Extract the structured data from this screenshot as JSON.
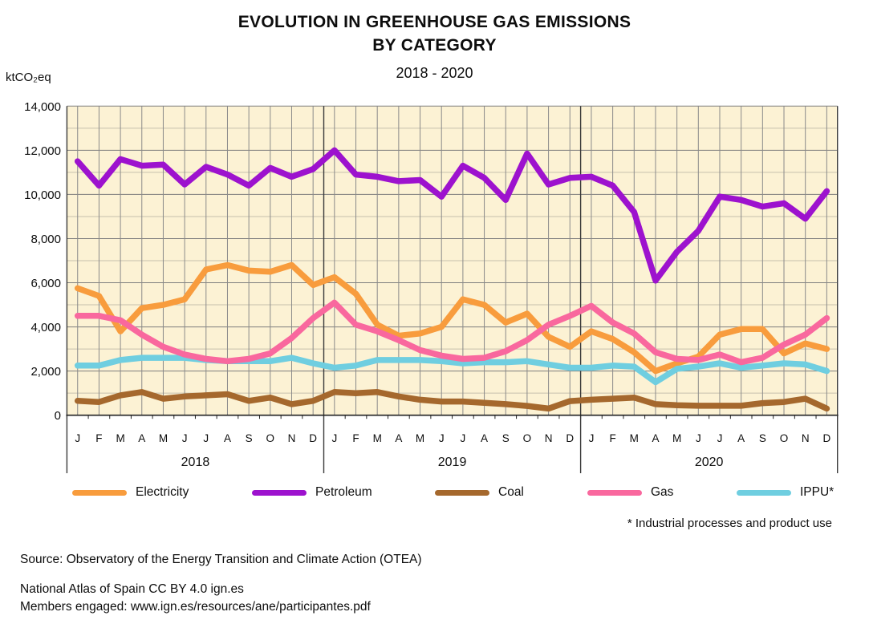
{
  "header": {
    "title_line1": "EVOLUTION IN GREENHOUSE GAS EMISSIONS",
    "title_line2": "BY CATEGORY",
    "subtitle": "2018 - 2020",
    "unit_label": "ktCO₂eq"
  },
  "chart_data": {
    "type": "line",
    "title": "EVOLUTION IN GREENHOUSE GAS EMISSIONS BY CATEGORY",
    "subtitle": "2018 - 2020",
    "xlabel": "",
    "ylabel": "ktCO₂eq",
    "ylim": [
      0,
      14000
    ],
    "ytick_labeled_interval": 2000,
    "ytick_minor_interval": 1000,
    "ytick_labels": [
      "0",
      "2,000",
      "4,000",
      "6,000",
      "8,000",
      "10,000",
      "12,000",
      "14,000"
    ],
    "grid": true,
    "legend_position": "bottom",
    "years": [
      "2018",
      "2019",
      "2020"
    ],
    "month_letters": [
      "J",
      "F",
      "M",
      "A",
      "M",
      "J",
      "J",
      "A",
      "S",
      "O",
      "N",
      "D"
    ],
    "series": [
      {
        "name": "Electricity",
        "color": "#F89C3D",
        "values": [
          5750,
          5400,
          3800,
          4850,
          5000,
          5250,
          6600,
          6800,
          6550,
          6500,
          6800,
          5900,
          6250,
          5500,
          4100,
          3600,
          3700,
          4000,
          5250,
          5000,
          4200,
          4600,
          3550,
          3100,
          3800,
          3450,
          2850,
          2000,
          2350,
          2650,
          3650,
          3900,
          3900,
          2800,
          3250,
          3000
        ]
      },
      {
        "name": "Petroleum",
        "color": "#9D12CE",
        "values": [
          11500,
          10400,
          11600,
          11300,
          11350,
          10450,
          11250,
          10900,
          10400,
          11200,
          10800,
          11150,
          12000,
          10900,
          10800,
          10600,
          10650,
          9900,
          11300,
          10750,
          9750,
          11850,
          10450,
          10750,
          10800,
          10400,
          9200,
          6100,
          7400,
          8350,
          9900,
          9750,
          9450,
          9600,
          8900,
          10150
        ]
      },
      {
        "name": "Coal",
        "color": "#A5682D",
        "values": [
          650,
          600,
          900,
          1050,
          750,
          850,
          900,
          950,
          650,
          800,
          500,
          650,
          1050,
          1000,
          1050,
          850,
          700,
          620,
          620,
          560,
          500,
          420,
          300,
          640,
          700,
          750,
          800,
          500,
          450,
          430,
          430,
          430,
          550,
          600,
          750,
          300
        ]
      },
      {
        "name": "Gas",
        "color": "#F9689E",
        "values": [
          4500,
          4500,
          4300,
          3650,
          3100,
          2750,
          2550,
          2450,
          2550,
          2800,
          3500,
          4400,
          5100,
          4100,
          3800,
          3400,
          2950,
          2700,
          2550,
          2600,
          2900,
          3400,
          4100,
          4500,
          4950,
          4200,
          3700,
          2850,
          2550,
          2500,
          2750,
          2400,
          2600,
          3200,
          3650,
          4400
        ]
      },
      {
        "name": "IPPU*",
        "color": "#6FCEE0",
        "values": [
          2250,
          2250,
          2500,
          2600,
          2600,
          2600,
          2500,
          2450,
          2450,
          2450,
          2600,
          2350,
          2150,
          2250,
          2500,
          2500,
          2500,
          2450,
          2350,
          2400,
          2400,
          2450,
          2300,
          2150,
          2150,
          2250,
          2200,
          1500,
          2100,
          2200,
          2350,
          2150,
          2250,
          2350,
          2300,
          2000
        ]
      }
    ]
  },
  "legend": {
    "footnote": "* Industrial processes and product use"
  },
  "footer": {
    "source": "Source: Observatory of the Energy Transition and Climate Action (OTEA)",
    "line1": "National Atlas of Spain CC BY 4.0 ign.es",
    "line2": "Members engaged: www.ign.es/resources/ane/participantes.pdf"
  },
  "colors": {
    "plot_background": "#FCF2D4",
    "major_gridline": "#7E7E7E",
    "minor_gridline": "#C6C0AD",
    "month_gridline": "#8A8A8A",
    "separator": "#3A3A3A",
    "axis": "#222222",
    "text": "#0d0d0d"
  }
}
